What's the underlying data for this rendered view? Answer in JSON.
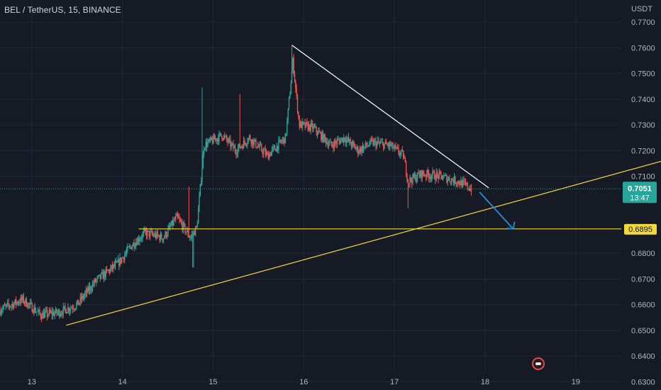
{
  "header": {
    "symbol_title": "BEL / TetherUS, 15, BINANCE"
  },
  "price_axis": {
    "currency": "USDT",
    "ticks": [
      "0.7700",
      "0.7600",
      "0.7500",
      "0.7400",
      "0.7300",
      "0.7200",
      "0.7100",
      "0.6800",
      "0.6700",
      "0.6600",
      "0.6500",
      "0.6400",
      "0.6300"
    ]
  },
  "time_axis": {
    "ticks": [
      "13",
      "14",
      "15",
      "16",
      "17",
      "18",
      "19"
    ]
  },
  "last_price": {
    "value": "0.7051",
    "countdown": "13:47",
    "color": "#26a69a"
  },
  "support_level": {
    "value": "0.6895",
    "color": "#f0d93c"
  },
  "colors": {
    "up": "#26a69a",
    "down": "#ef5350",
    "background": "#161a25",
    "trendline_white": "#ffffff",
    "trendline_yellow": "#f0d93c",
    "arrow": "#2a83c4"
  },
  "chart_data": {
    "type": "candlestick",
    "y_unit": "USDT",
    "x_unit": "day",
    "ylim": [
      0.6268,
      0.7786
    ],
    "xlim": [
      12.65,
      19.94
    ],
    "last_price": 0.7051,
    "horizontal_level": 0.6895,
    "trendlines": [
      {
        "kind": "descending resistance",
        "from": [
          15.87,
          0.761
        ],
        "to": [
          18.04,
          0.7055
        ]
      },
      {
        "kind": "ascending support",
        "from": [
          13.38,
          0.652
        ],
        "to": [
          20.37,
          0.72
        ]
      }
    ],
    "projection_arrow": {
      "from": [
        17.94,
        0.7038
      ],
      "to": [
        18.31,
        0.6895
      ]
    },
    "price_path": [
      [
        12.65,
        0.658
      ],
      [
        12.9,
        0.662
      ],
      [
        13.1,
        0.656
      ],
      [
        13.3,
        0.657
      ],
      [
        13.5,
        0.66
      ],
      [
        13.7,
        0.669
      ],
      [
        13.95,
        0.676
      ],
      [
        14.1,
        0.683
      ],
      [
        14.25,
        0.688
      ],
      [
        14.45,
        0.686
      ],
      [
        14.6,
        0.694
      ],
      [
        14.75,
        0.686
      ],
      [
        14.82,
        0.69
      ],
      [
        14.9,
        0.722
      ],
      [
        15.1,
        0.726
      ],
      [
        15.25,
        0.72
      ],
      [
        15.4,
        0.725
      ],
      [
        15.6,
        0.718
      ],
      [
        15.8,
        0.725
      ],
      [
        15.88,
        0.755
      ],
      [
        15.95,
        0.73
      ],
      [
        16.1,
        0.729
      ],
      [
        16.3,
        0.722
      ],
      [
        16.45,
        0.725
      ],
      [
        16.6,
        0.72
      ],
      [
        16.75,
        0.723
      ],
      [
        16.95,
        0.722
      ],
      [
        17.1,
        0.718
      ],
      [
        17.15,
        0.708
      ],
      [
        17.3,
        0.711
      ],
      [
        17.5,
        0.71
      ],
      [
        17.7,
        0.708
      ],
      [
        17.85,
        0.7051
      ]
    ]
  }
}
